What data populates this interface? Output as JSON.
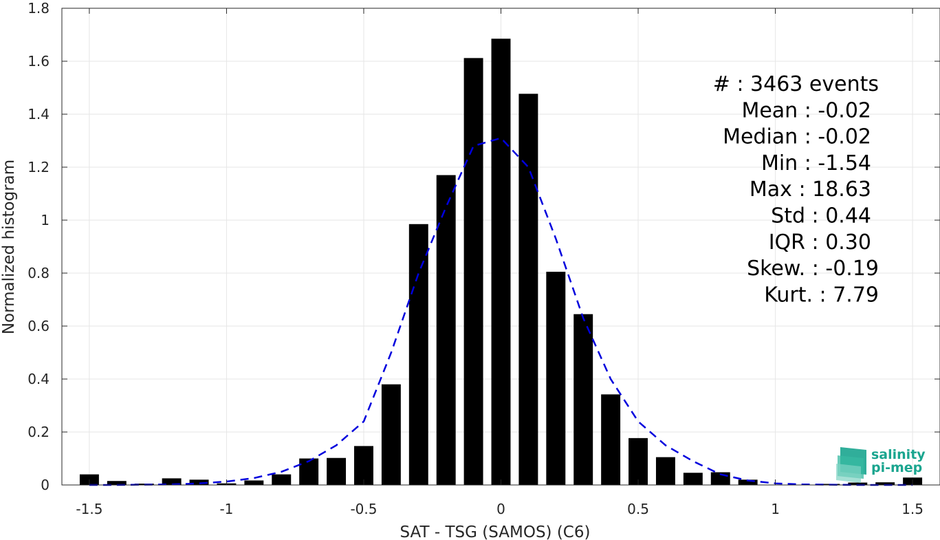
{
  "chart_data": {
    "type": "bar",
    "xlabel": "SAT - TSG (SAMOS) (C6)",
    "ylabel": "Normalized histogram",
    "xlim": [
      -1.6,
      1.6
    ],
    "ylim": [
      0,
      1.8
    ],
    "xticks": [
      -1.5,
      -1,
      -0.5,
      0,
      0.5,
      1,
      1.5
    ],
    "xtick_labels": [
      "-1.5",
      "-1",
      "-0.5",
      "0",
      "0.5",
      "1",
      "1.5"
    ],
    "yticks": [
      0,
      0.2,
      0.4,
      0.6,
      0.8,
      1,
      1.2,
      1.4,
      1.6,
      1.8
    ],
    "ytick_labels": [
      "0",
      "0.2",
      "0.4",
      "0.6",
      "0.8",
      "1",
      "1.2",
      "1.4",
      "1.6",
      "1.8"
    ],
    "grid": true,
    "bar_color": "#000000",
    "bars": {
      "x": [
        -1.5,
        -1.4,
        -1.3,
        -1.2,
        -1.1,
        -1.0,
        -0.9,
        -0.8,
        -0.7,
        -0.6,
        -0.5,
        -0.4,
        -0.3,
        -0.2,
        -0.1,
        0.0,
        0.1,
        0.2,
        0.3,
        0.4,
        0.5,
        0.6,
        0.7,
        0.8,
        0.9,
        1.0,
        1.1,
        1.2,
        1.3,
        1.4,
        1.5
      ],
      "values": [
        0.04,
        0.015,
        0.005,
        0.025,
        0.02,
        0.006,
        0.017,
        0.04,
        0.1,
        0.102,
        0.147,
        0.38,
        0.985,
        1.17,
        1.612,
        1.685,
        1.477,
        0.805,
        0.645,
        0.342,
        0.177,
        0.105,
        0.046,
        0.048,
        0.02,
        0.0,
        0.0,
        0.004,
        0.009,
        0.01,
        0.028
      ]
    },
    "fit_curve": {
      "style": "dashed",
      "color": "#0000dd",
      "x": [
        -1.5,
        -1.4,
        -1.3,
        -1.2,
        -1.1,
        -1.0,
        -0.9,
        -0.8,
        -0.7,
        -0.6,
        -0.5,
        -0.4,
        -0.3,
        -0.2,
        -0.1,
        0.0,
        0.1,
        0.2,
        0.3,
        0.4,
        0.5,
        0.6,
        0.7,
        0.8,
        0.9,
        1.0,
        1.1,
        1.2,
        1.3,
        1.4,
        1.5
      ],
      "y": [
        0.0,
        0.0,
        0.001,
        0.002,
        0.006,
        0.013,
        0.026,
        0.05,
        0.09,
        0.15,
        0.24,
        0.5,
        0.8,
        1.05,
        1.28,
        1.31,
        1.2,
        0.93,
        0.63,
        0.4,
        0.24,
        0.15,
        0.09,
        0.04,
        0.017,
        0.006,
        0.002,
        0.001,
        0.0,
        0.0,
        0.0
      ]
    },
    "annotations": [
      "#  : 3463 events",
      "Mean : -0.02",
      "Median : -0.02",
      "Min : -1.54",
      "Max : 18.63",
      "Std : 0.44",
      "IQR : 0.30",
      "Skew. : -0.19",
      "Kurt. : 7.79"
    ]
  },
  "logo": {
    "line1": "salinity",
    "line2": "pi-mep",
    "color": "#1aa58f"
  }
}
